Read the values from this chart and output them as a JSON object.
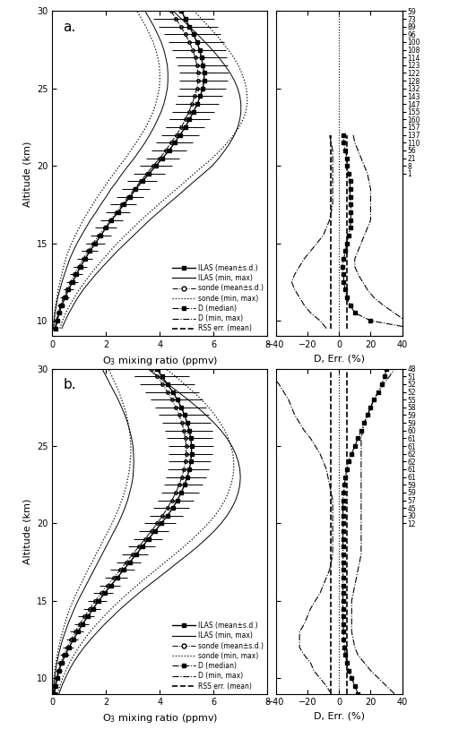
{
  "panel_a": {
    "altitudes": [
      9.5,
      10,
      10.5,
      11,
      11.5,
      12,
      12.5,
      13,
      13.5,
      14,
      14.5,
      15,
      15.5,
      16,
      16.5,
      17,
      17.5,
      18,
      18.5,
      19,
      19.5,
      20,
      20.5,
      21,
      21.5,
      22,
      22.5,
      23,
      23.5,
      24,
      24.5,
      25,
      25.5,
      26,
      26.5,
      27,
      27.5,
      28,
      28.5,
      29,
      29.5,
      30
    ],
    "ilas_mean": [
      0.12,
      0.18,
      0.25,
      0.35,
      0.48,
      0.6,
      0.75,
      0.9,
      1.05,
      1.22,
      1.4,
      1.6,
      1.8,
      2.0,
      2.2,
      2.45,
      2.65,
      2.9,
      3.1,
      3.35,
      3.6,
      3.85,
      4.1,
      4.35,
      4.55,
      4.75,
      4.95,
      5.1,
      5.25,
      5.4,
      5.5,
      5.6,
      5.65,
      5.65,
      5.6,
      5.55,
      5.48,
      5.38,
      5.25,
      5.1,
      4.95,
      4.8
    ],
    "ilas_sd_lo": [
      0.06,
      0.08,
      0.1,
      0.12,
      0.15,
      0.18,
      0.2,
      0.22,
      0.25,
      0.28,
      0.3,
      0.35,
      0.38,
      0.4,
      0.42,
      0.45,
      0.48,
      0.5,
      0.52,
      0.55,
      0.58,
      0.6,
      0.62,
      0.65,
      0.68,
      0.7,
      0.72,
      0.75,
      0.78,
      0.8,
      0.82,
      0.85,
      0.88,
      0.9,
      0.92,
      0.95,
      0.98,
      1.0,
      1.02,
      1.05,
      1.08,
      1.1
    ],
    "ilas_sd_hi": [
      0.06,
      0.08,
      0.1,
      0.12,
      0.15,
      0.18,
      0.2,
      0.22,
      0.25,
      0.28,
      0.3,
      0.35,
      0.38,
      0.4,
      0.42,
      0.45,
      0.48,
      0.5,
      0.52,
      0.55,
      0.58,
      0.6,
      0.62,
      0.65,
      0.68,
      0.7,
      0.72,
      0.75,
      0.78,
      0.8,
      0.82,
      0.85,
      0.88,
      0.9,
      0.92,
      0.95,
      0.98,
      1.0,
      1.02,
      1.05,
      1.08,
      1.1
    ],
    "ilas_min": [
      0.04,
      0.07,
      0.1,
      0.15,
      0.2,
      0.28,
      0.36,
      0.45,
      0.55,
      0.65,
      0.78,
      0.92,
      1.08,
      1.25,
      1.42,
      1.62,
      1.8,
      2.0,
      2.18,
      2.4,
      2.6,
      2.82,
      3.05,
      3.25,
      3.45,
      3.62,
      3.78,
      3.92,
      4.05,
      4.15,
      4.22,
      4.28,
      4.3,
      4.3,
      4.28,
      4.22,
      4.15,
      4.05,
      3.92,
      3.78,
      3.62,
      3.45
    ],
    "ilas_max": [
      0.35,
      0.48,
      0.62,
      0.78,
      0.95,
      1.15,
      1.38,
      1.62,
      1.88,
      2.15,
      2.42,
      2.72,
      3.02,
      3.32,
      3.62,
      3.95,
      4.28,
      4.62,
      4.95,
      5.28,
      5.62,
      5.95,
      6.2,
      6.42,
      6.62,
      6.78,
      6.9,
      6.98,
      7.02,
      7.02,
      6.98,
      6.9,
      6.78,
      6.62,
      6.42,
      6.2,
      5.95,
      5.68,
      5.4,
      5.1,
      4.8,
      4.5
    ],
    "sonde_mean": [
      0.1,
      0.15,
      0.22,
      0.3,
      0.42,
      0.55,
      0.68,
      0.82,
      0.98,
      1.15,
      1.32,
      1.52,
      1.72,
      1.95,
      2.15,
      2.38,
      2.6,
      2.82,
      3.05,
      3.28,
      3.52,
      3.75,
      4.0,
      4.22,
      4.42,
      4.62,
      4.8,
      4.95,
      5.08,
      5.2,
      5.3,
      5.38,
      5.42,
      5.42,
      5.38,
      5.32,
      5.22,
      5.1,
      4.95,
      4.78,
      4.6,
      4.42
    ],
    "sonde_sd_lo": [
      0.04,
      0.06,
      0.08,
      0.1,
      0.12,
      0.14,
      0.16,
      0.18,
      0.2,
      0.22,
      0.24,
      0.26,
      0.28,
      0.3,
      0.32,
      0.34,
      0.36,
      0.38,
      0.4,
      0.42,
      0.44,
      0.46,
      0.48,
      0.5,
      0.52,
      0.54,
      0.56,
      0.58,
      0.6,
      0.62,
      0.64,
      0.66,
      0.68,
      0.7,
      0.72,
      0.74,
      0.76,
      0.78,
      0.8,
      0.82,
      0.84,
      0.86
    ],
    "sonde_sd_hi": [
      0.04,
      0.06,
      0.08,
      0.1,
      0.12,
      0.14,
      0.16,
      0.18,
      0.2,
      0.22,
      0.24,
      0.26,
      0.28,
      0.3,
      0.32,
      0.34,
      0.36,
      0.38,
      0.4,
      0.42,
      0.44,
      0.46,
      0.48,
      0.5,
      0.52,
      0.54,
      0.56,
      0.58,
      0.6,
      0.62,
      0.64,
      0.66,
      0.68,
      0.7,
      0.72,
      0.74,
      0.76,
      0.78,
      0.8,
      0.82,
      0.84,
      0.86
    ],
    "sonde_min": [
      0.03,
      0.05,
      0.08,
      0.12,
      0.17,
      0.22,
      0.28,
      0.35,
      0.42,
      0.5,
      0.6,
      0.72,
      0.85,
      1.0,
      1.15,
      1.32,
      1.5,
      1.68,
      1.88,
      2.08,
      2.28,
      2.5,
      2.72,
      2.92,
      3.12,
      3.3,
      3.48,
      3.62,
      3.75,
      3.85,
      3.92,
      3.98,
      4.0,
      4.0,
      3.98,
      3.92,
      3.85,
      3.75,
      3.62,
      3.48,
      3.32,
      3.15
    ],
    "sonde_max": [
      0.28,
      0.38,
      0.5,
      0.65,
      0.82,
      1.0,
      1.2,
      1.42,
      1.65,
      1.9,
      2.15,
      2.42,
      2.7,
      3.0,
      3.3,
      3.62,
      3.95,
      4.28,
      4.62,
      4.95,
      5.28,
      5.62,
      5.95,
      6.25,
      6.52,
      6.75,
      6.95,
      7.1,
      7.2,
      7.25,
      7.25,
      7.22,
      7.15,
      7.05,
      6.92,
      6.75,
      6.55,
      6.32,
      6.08,
      5.82,
      5.55,
      5.28
    ],
    "D_altitudes": [
      9.5,
      10,
      10.5,
      11,
      11.5,
      12,
      12.5,
      13,
      13.5,
      14,
      14.5,
      15,
      15.5,
      16,
      16.5,
      17,
      17.5,
      18,
      18.5,
      19,
      19.5,
      20,
      20.5,
      21,
      21.5,
      22
    ],
    "D_median": [
      47,
      20,
      10,
      7,
      5,
      4,
      3,
      3,
      2,
      3,
      4,
      5,
      6,
      7,
      7.5,
      7.5,
      7.5,
      7,
      7,
      7,
      6,
      5,
      5,
      4,
      3,
      3
    ],
    "D_min_dashdot": [
      -8,
      -12,
      -18,
      -22,
      -25,
      -28,
      -30,
      -28,
      -25,
      -22,
      -18,
      -14,
      -10,
      -8,
      -6,
      -5,
      -4,
      -4,
      -4,
      -4,
      -4,
      -4,
      -4,
      -4,
      -5,
      -6
    ],
    "D_max_dashdot": [
      50,
      42,
      35,
      28,
      22,
      18,
      15,
      12,
      10,
      10,
      12,
      14,
      16,
      18,
      20,
      20,
      20,
      20,
      20,
      19,
      18,
      16,
      14,
      12,
      10,
      9
    ],
    "RSS_alts": [
      9.5,
      10,
      10.5,
      11,
      11.5,
      12,
      12.5,
      13,
      13.5,
      14,
      14.5,
      15,
      15.5,
      16,
      16.5,
      17,
      17.5,
      18,
      18.5,
      19,
      19.5,
      20,
      20.5,
      21,
      21.5,
      22
    ],
    "RSS_mean": [
      5,
      5,
      5,
      5,
      5,
      5,
      5,
      5,
      5,
      5,
      5,
      5,
      5,
      5,
      5,
      5,
      5,
      5,
      5,
      5,
      5,
      5,
      5,
      5,
      5,
      5
    ],
    "n_right": [
      59,
      73,
      89,
      96,
      100,
      108,
      114,
      123,
      122,
      128,
      132,
      143,
      147,
      155,
      160,
      157,
      137,
      110,
      56,
      21,
      8,
      1
    ],
    "n_alts": [
      30,
      29.5,
      29,
      28.5,
      28,
      27.5,
      27,
      26.5,
      26,
      25.5,
      25,
      24.5,
      24,
      23.5,
      23,
      22.5,
      22,
      21.5,
      21,
      20.5,
      20,
      19.5
    ]
  },
  "panel_b": {
    "altitudes": [
      9.0,
      9.5,
      10,
      10.5,
      11,
      11.5,
      12,
      12.5,
      13,
      13.5,
      14,
      14.5,
      15,
      15.5,
      16,
      16.5,
      17,
      17.5,
      18,
      18.5,
      19,
      19.5,
      20,
      20.5,
      21,
      21.5,
      22,
      22.5,
      23,
      23.5,
      24,
      24.5,
      25,
      25.5,
      26,
      26.5,
      27,
      27.5,
      28,
      28.5,
      29,
      29.5,
      30
    ],
    "ilas_mean": [
      0.08,
      0.12,
      0.18,
      0.25,
      0.35,
      0.48,
      0.62,
      0.78,
      0.95,
      1.12,
      1.32,
      1.52,
      1.72,
      1.95,
      2.18,
      2.42,
      2.65,
      2.88,
      3.12,
      3.35,
      3.58,
      3.82,
      4.05,
      4.28,
      4.48,
      4.65,
      4.8,
      4.92,
      5.02,
      5.1,
      5.15,
      5.18,
      5.18,
      5.15,
      5.1,
      5.02,
      4.92,
      4.8,
      4.65,
      4.48,
      4.28,
      4.08,
      3.88
    ],
    "ilas_sd_lo": [
      0.04,
      0.06,
      0.08,
      0.1,
      0.12,
      0.14,
      0.16,
      0.18,
      0.2,
      0.22,
      0.25,
      0.28,
      0.3,
      0.32,
      0.35,
      0.38,
      0.4,
      0.42,
      0.45,
      0.48,
      0.5,
      0.52,
      0.55,
      0.58,
      0.6,
      0.62,
      0.65,
      0.68,
      0.7,
      0.72,
      0.75,
      0.78,
      0.8,
      0.82,
      0.85,
      0.88,
      0.9,
      0.92,
      0.95,
      0.98,
      1.0,
      1.02,
      1.05
    ],
    "ilas_sd_hi": [
      0.04,
      0.06,
      0.08,
      0.1,
      0.12,
      0.14,
      0.16,
      0.18,
      0.2,
      0.22,
      0.25,
      0.28,
      0.3,
      0.32,
      0.35,
      0.38,
      0.4,
      0.42,
      0.45,
      0.48,
      0.5,
      0.52,
      0.55,
      0.58,
      0.6,
      0.62,
      0.65,
      0.68,
      0.7,
      0.72,
      0.75,
      0.78,
      0.8,
      0.82,
      0.85,
      0.88,
      0.9,
      0.92,
      0.95,
      0.98,
      1.0,
      1.02,
      1.05
    ],
    "ilas_min": [
      0.03,
      0.05,
      0.08,
      0.12,
      0.17,
      0.23,
      0.3,
      0.38,
      0.48,
      0.58,
      0.7,
      0.82,
      0.95,
      1.1,
      1.25,
      1.4,
      1.55,
      1.7,
      1.85,
      2.0,
      2.15,
      2.3,
      2.45,
      2.58,
      2.7,
      2.8,
      2.88,
      2.95,
      3.0,
      3.02,
      3.03,
      3.02,
      3.0,
      2.95,
      2.88,
      2.8,
      2.7,
      2.58,
      2.45,
      2.3,
      2.15,
      2.0,
      1.85
    ],
    "ilas_max": [
      0.25,
      0.35,
      0.48,
      0.62,
      0.78,
      0.97,
      1.18,
      1.42,
      1.68,
      1.95,
      2.25,
      2.55,
      2.88,
      3.22,
      3.58,
      3.95,
      4.32,
      4.68,
      5.05,
      5.4,
      5.72,
      6.02,
      6.28,
      6.5,
      6.68,
      6.82,
      6.92,
      6.98,
      7.0,
      6.98,
      6.92,
      6.82,
      6.68,
      6.5,
      6.28,
      6.02,
      5.72,
      5.4,
      5.05,
      4.68,
      4.3,
      3.92,
      3.55
    ],
    "sonde_mean": [
      0.06,
      0.1,
      0.15,
      0.22,
      0.3,
      0.42,
      0.55,
      0.7,
      0.85,
      1.02,
      1.2,
      1.4,
      1.6,
      1.82,
      2.05,
      2.28,
      2.52,
      2.75,
      2.98,
      3.22,
      3.45,
      3.68,
      3.9,
      4.1,
      4.28,
      4.45,
      4.6,
      4.72,
      4.82,
      4.9,
      4.95,
      4.98,
      4.98,
      4.95,
      4.9,
      4.82,
      4.72,
      4.6,
      4.45,
      4.28,
      4.1,
      3.9,
      3.7
    ],
    "sonde_sd_lo": [
      0.03,
      0.05,
      0.07,
      0.09,
      0.11,
      0.13,
      0.15,
      0.17,
      0.19,
      0.21,
      0.23,
      0.25,
      0.27,
      0.29,
      0.31,
      0.33,
      0.35,
      0.37,
      0.39,
      0.41,
      0.43,
      0.45,
      0.47,
      0.49,
      0.51,
      0.53,
      0.55,
      0.57,
      0.59,
      0.61,
      0.63,
      0.65,
      0.67,
      0.69,
      0.71,
      0.73,
      0.75,
      0.77,
      0.79,
      0.81,
      0.83,
      0.85,
      0.87
    ],
    "sonde_sd_hi": [
      0.03,
      0.05,
      0.07,
      0.09,
      0.11,
      0.13,
      0.15,
      0.17,
      0.19,
      0.21,
      0.23,
      0.25,
      0.27,
      0.29,
      0.31,
      0.33,
      0.35,
      0.37,
      0.39,
      0.41,
      0.43,
      0.45,
      0.47,
      0.49,
      0.51,
      0.53,
      0.55,
      0.57,
      0.59,
      0.61,
      0.63,
      0.65,
      0.67,
      0.69,
      0.71,
      0.73,
      0.75,
      0.77,
      0.79,
      0.81,
      0.83,
      0.85,
      0.87
    ],
    "sonde_min": [
      0.02,
      0.04,
      0.06,
      0.09,
      0.13,
      0.18,
      0.24,
      0.3,
      0.38,
      0.46,
      0.55,
      0.65,
      0.77,
      0.9,
      1.04,
      1.18,
      1.32,
      1.48,
      1.62,
      1.78,
      1.92,
      2.08,
      2.22,
      2.35,
      2.48,
      2.58,
      2.68,
      2.76,
      2.82,
      2.87,
      2.9,
      2.92,
      2.92,
      2.9,
      2.87,
      2.82,
      2.76,
      2.68,
      2.58,
      2.48,
      2.35,
      2.22,
      2.08
    ],
    "sonde_max": [
      0.2,
      0.28,
      0.38,
      0.5,
      0.64,
      0.8,
      0.98,
      1.18,
      1.4,
      1.65,
      1.92,
      2.2,
      2.5,
      2.82,
      3.15,
      3.5,
      3.85,
      4.2,
      4.55,
      4.9,
      5.22,
      5.52,
      5.8,
      6.05,
      6.25,
      6.42,
      6.55,
      6.65,
      6.72,
      6.75,
      6.75,
      6.72,
      6.65,
      6.55,
      6.42,
      6.25,
      6.05,
      5.82,
      5.55,
      5.25,
      4.92,
      4.58,
      4.22
    ],
    "D_altitudes": [
      9.0,
      9.5,
      10,
      10.5,
      11,
      11.5,
      12,
      12.5,
      13,
      13.5,
      14,
      14.5,
      15,
      15.5,
      16,
      16.5,
      17,
      17.5,
      18,
      18.5,
      19,
      19.5,
      20,
      20.5,
      21,
      21.5,
      22,
      22.5,
      23,
      23.5,
      24,
      24.5,
      25,
      25.5,
      26,
      26.5,
      27,
      27.5,
      28,
      28.5,
      29,
      29.5,
      30
    ],
    "D_median": [
      12,
      10,
      8,
      6,
      5,
      4,
      3.5,
      3,
      3,
      2.5,
      2.5,
      2.5,
      2.5,
      2.5,
      2.5,
      2.5,
      2.5,
      2.5,
      2.5,
      2.5,
      2.5,
      2.5,
      2.5,
      2.5,
      2.5,
      2.5,
      3,
      3.5,
      4,
      5,
      6,
      8,
      10,
      12,
      14,
      16,
      18,
      20,
      22,
      25,
      27,
      29,
      30
    ],
    "D_min_dashdot": [
      -5,
      -8,
      -12,
      -16,
      -18,
      -22,
      -25,
      -25,
      -25,
      -22,
      -20,
      -18,
      -15,
      -12,
      -10,
      -8,
      -6,
      -5,
      -4,
      -4,
      -4,
      -4,
      -4,
      -4,
      -4,
      -4,
      -5,
      -6,
      -7,
      -8,
      -10,
      -12,
      -15,
      -18,
      -22,
      -25,
      -28,
      -30,
      -32,
      -35,
      -38,
      -42,
      -45
    ],
    "D_max_dashdot": [
      35,
      30,
      25,
      20,
      16,
      12,
      10,
      9,
      8,
      8,
      8,
      8,
      8,
      9,
      10,
      11,
      12,
      13,
      14,
      14,
      14,
      14,
      14,
      14,
      14,
      14,
      14,
      14,
      14,
      14,
      14,
      14,
      14,
      14,
      15,
      16,
      18,
      20,
      22,
      25,
      28,
      32,
      35
    ],
    "RSS_alts": [
      9.0,
      9.5,
      10,
      10.5,
      11,
      11.5,
      12,
      12.5,
      13,
      13.5,
      14,
      14.5,
      15,
      15.5,
      16,
      16.5,
      17,
      17.5,
      18,
      18.5,
      19,
      19.5,
      20,
      20.5,
      21,
      21.5,
      22,
      22.5,
      23,
      23.5,
      24,
      24.5,
      25,
      25.5,
      26,
      26.5,
      27,
      27.5,
      28,
      28.5,
      29,
      29.5,
      30
    ],
    "RSS_mean": [
      5,
      5,
      5,
      5,
      5,
      5,
      5,
      5,
      5,
      5,
      5,
      5,
      5,
      5,
      5,
      5,
      5,
      5,
      5,
      5,
      5,
      5,
      5,
      5,
      5,
      5,
      5,
      5,
      5,
      5,
      5,
      5,
      5,
      5,
      5,
      5,
      5,
      5,
      5,
      5,
      5,
      5,
      5
    ],
    "n_right": [
      48,
      51,
      52,
      52,
      55,
      58,
      59,
      59,
      60,
      61,
      61,
      62,
      62,
      61,
      61,
      59,
      59,
      57,
      45,
      30,
      12
    ],
    "n_alts": [
      30,
      29.5,
      29,
      28.5,
      28,
      27.5,
      27,
      26.5,
      26,
      25.5,
      25,
      24.5,
      24,
      23.5,
      23,
      22.5,
      22,
      21.5,
      21,
      20.5,
      20
    ]
  },
  "xlim_ozone": [
    0,
    8
  ],
  "xlim_D": [
    -40,
    40
  ],
  "ylim": [
    9,
    30
  ],
  "title_a": "a.",
  "title_b": "b.",
  "xlabel_ozone": "O$_3$ mixing ratio (ppmv)",
  "xlabel_D": "D, Err. (%)",
  "ylabel": "Altitude (km)"
}
